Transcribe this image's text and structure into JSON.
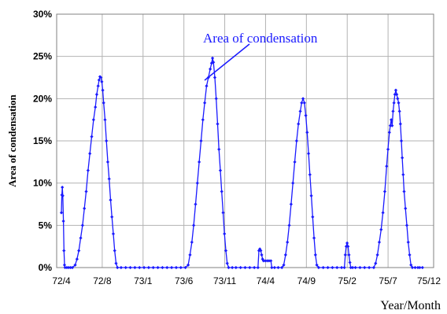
{
  "chart_data": {
    "type": "line",
    "ylabel": "Area of condensation",
    "xlabel": "Year/Month",
    "ylim": [
      0,
      30
    ],
    "y_ticks": [
      "0%",
      "5%",
      "10%",
      "15%",
      "20%",
      "25%",
      "30%"
    ],
    "x_ticks": [
      "72/4",
      "72/8",
      "73/1",
      "73/6",
      "73/11",
      "74/4",
      "74/9",
      "75/2",
      "75/7",
      "75/12"
    ],
    "grid": true,
    "annotation": "Area of condensation",
    "series": [
      {
        "color": "#1a1aff",
        "marker": "diamond",
        "points": [
          [
            0.0,
            6.5
          ],
          [
            0.05,
            8.6
          ],
          [
            0.1,
            9.5
          ],
          [
            0.15,
            8.5
          ],
          [
            0.22,
            5.5
          ],
          [
            0.28,
            2.0
          ],
          [
            0.34,
            0.3
          ],
          [
            0.4,
            0.0
          ],
          [
            0.6,
            0.0
          ],
          [
            0.8,
            0.0
          ],
          [
            1.0,
            0.0
          ],
          [
            1.2,
            0.0
          ],
          [
            1.5,
            0.3
          ],
          [
            1.7,
            1.0
          ],
          [
            1.9,
            2.0
          ],
          [
            2.1,
            3.5
          ],
          [
            2.3,
            5.0
          ],
          [
            2.5,
            7.0
          ],
          [
            2.7,
            9.0
          ],
          [
            2.9,
            11.5
          ],
          [
            3.1,
            13.5
          ],
          [
            3.3,
            15.5
          ],
          [
            3.5,
            17.5
          ],
          [
            3.7,
            19.0
          ],
          [
            3.85,
            20.5
          ],
          [
            4.0,
            21.5
          ],
          [
            4.1,
            22.2
          ],
          [
            4.2,
            22.6
          ],
          [
            4.3,
            22.5
          ],
          [
            4.4,
            22.0
          ],
          [
            4.5,
            21.0
          ],
          [
            4.6,
            19.5
          ],
          [
            4.75,
            17.5
          ],
          [
            4.9,
            15.0
          ],
          [
            5.05,
            12.5
          ],
          [
            5.2,
            10.5
          ],
          [
            5.35,
            8.0
          ],
          [
            5.5,
            6.0
          ],
          [
            5.65,
            4.0
          ],
          [
            5.8,
            2.0
          ],
          [
            5.95,
            0.5
          ],
          [
            6.1,
            0.0
          ],
          [
            6.5,
            0.0
          ],
          [
            7.0,
            0.0
          ],
          [
            7.5,
            0.0
          ],
          [
            8.0,
            0.0
          ],
          [
            8.5,
            0.0
          ],
          [
            9.0,
            0.0
          ],
          [
            9.5,
            0.0
          ],
          [
            10.0,
            0.0
          ],
          [
            10.5,
            0.0
          ],
          [
            11.0,
            0.0
          ],
          [
            11.5,
            0.0
          ],
          [
            12.0,
            0.0
          ],
          [
            12.5,
            0.0
          ],
          [
            13.0,
            0.0
          ],
          [
            13.5,
            0.0
          ],
          [
            13.8,
            0.3
          ],
          [
            14.0,
            1.5
          ],
          [
            14.2,
            3.0
          ],
          [
            14.4,
            5.0
          ],
          [
            14.6,
            7.5
          ],
          [
            14.8,
            10.0
          ],
          [
            15.0,
            12.5
          ],
          [
            15.2,
            15.0
          ],
          [
            15.4,
            17.5
          ],
          [
            15.6,
            19.5
          ],
          [
            15.8,
            21.5
          ],
          [
            16.0,
            22.5
          ],
          [
            16.2,
            23.5
          ],
          [
            16.35,
            24.2
          ],
          [
            16.45,
            24.8
          ],
          [
            16.55,
            24.3
          ],
          [
            16.7,
            22.5
          ],
          [
            16.85,
            20.0
          ],
          [
            17.0,
            17.0
          ],
          [
            17.15,
            14.0
          ],
          [
            17.3,
            11.5
          ],
          [
            17.45,
            9.0
          ],
          [
            17.6,
            6.5
          ],
          [
            17.75,
            4.0
          ],
          [
            17.9,
            2.0
          ],
          [
            18.05,
            0.5
          ],
          [
            18.2,
            0.0
          ],
          [
            18.6,
            0.0
          ],
          [
            19.0,
            0.0
          ],
          [
            19.5,
            0.0
          ],
          [
            20.0,
            0.0
          ],
          [
            20.5,
            0.0
          ],
          [
            21.0,
            0.0
          ],
          [
            21.4,
            0.0
          ],
          [
            21.5,
            2.0
          ],
          [
            21.6,
            2.2
          ],
          [
            21.7,
            2.0
          ],
          [
            21.8,
            1.5
          ],
          [
            21.9,
            1.0
          ],
          [
            22.0,
            0.8
          ],
          [
            22.2,
            0.8
          ],
          [
            22.4,
            0.8
          ],
          [
            22.6,
            0.8
          ],
          [
            22.8,
            0.8
          ],
          [
            22.9,
            0.0
          ],
          [
            23.2,
            0.0
          ],
          [
            23.6,
            0.0
          ],
          [
            24.0,
            0.0
          ],
          [
            24.2,
            0.3
          ],
          [
            24.4,
            1.5
          ],
          [
            24.6,
            3.0
          ],
          [
            24.8,
            5.0
          ],
          [
            25.0,
            7.5
          ],
          [
            25.2,
            10.0
          ],
          [
            25.4,
            12.5
          ],
          [
            25.6,
            15.0
          ],
          [
            25.8,
            17.0
          ],
          [
            26.0,
            18.5
          ],
          [
            26.15,
            19.5
          ],
          [
            26.3,
            20.0
          ],
          [
            26.45,
            19.5
          ],
          [
            26.6,
            18.0
          ],
          [
            26.75,
            16.0
          ],
          [
            26.9,
            13.5
          ],
          [
            27.05,
            11.0
          ],
          [
            27.2,
            8.5
          ],
          [
            27.35,
            6.0
          ],
          [
            27.5,
            3.5
          ],
          [
            27.65,
            1.5
          ],
          [
            27.8,
            0.3
          ],
          [
            28.0,
            0.0
          ],
          [
            28.5,
            0.0
          ],
          [
            29.0,
            0.0
          ],
          [
            29.5,
            0.0
          ],
          [
            30.0,
            0.0
          ],
          [
            30.5,
            0.0
          ],
          [
            30.8,
            0.0
          ],
          [
            30.9,
            1.5
          ],
          [
            31.0,
            2.5
          ],
          [
            31.1,
            2.9
          ],
          [
            31.2,
            2.5
          ],
          [
            31.3,
            1.5
          ],
          [
            31.4,
            0.6
          ],
          [
            31.5,
            0.0
          ],
          [
            31.7,
            0.0
          ],
          [
            32.0,
            0.0
          ],
          [
            32.5,
            0.0
          ],
          [
            33.0,
            0.0
          ],
          [
            33.5,
            0.0
          ],
          [
            34.0,
            0.0
          ],
          [
            34.2,
            0.5
          ],
          [
            34.4,
            1.5
          ],
          [
            34.6,
            3.0
          ],
          [
            34.8,
            4.5
          ],
          [
            35.0,
            6.5
          ],
          [
            35.2,
            9.0
          ],
          [
            35.4,
            12.0
          ],
          [
            35.55,
            14.0
          ],
          [
            35.7,
            16.0
          ],
          [
            35.8,
            16.8
          ],
          [
            35.9,
            17.5
          ],
          [
            36.0,
            16.8
          ],
          [
            36.1,
            18.5
          ],
          [
            36.2,
            19.5
          ],
          [
            36.3,
            20.5
          ],
          [
            36.4,
            21.0
          ],
          [
            36.5,
            20.5
          ],
          [
            36.6,
            20.0
          ],
          [
            36.7,
            19.5
          ],
          [
            36.8,
            18.5
          ],
          [
            36.9,
            17.0
          ],
          [
            37.0,
            15.0
          ],
          [
            37.1,
            13.0
          ],
          [
            37.2,
            11.0
          ],
          [
            37.3,
            9.0
          ],
          [
            37.45,
            7.0
          ],
          [
            37.6,
            5.0
          ],
          [
            37.75,
            3.0
          ],
          [
            37.9,
            1.5
          ],
          [
            38.05,
            0.3
          ],
          [
            38.2,
            0.0
          ],
          [
            38.5,
            0.0
          ],
          [
            38.8,
            0.0
          ],
          [
            39.0,
            0.0
          ],
          [
            39.3,
            0.0
          ]
        ]
      }
    ]
  }
}
